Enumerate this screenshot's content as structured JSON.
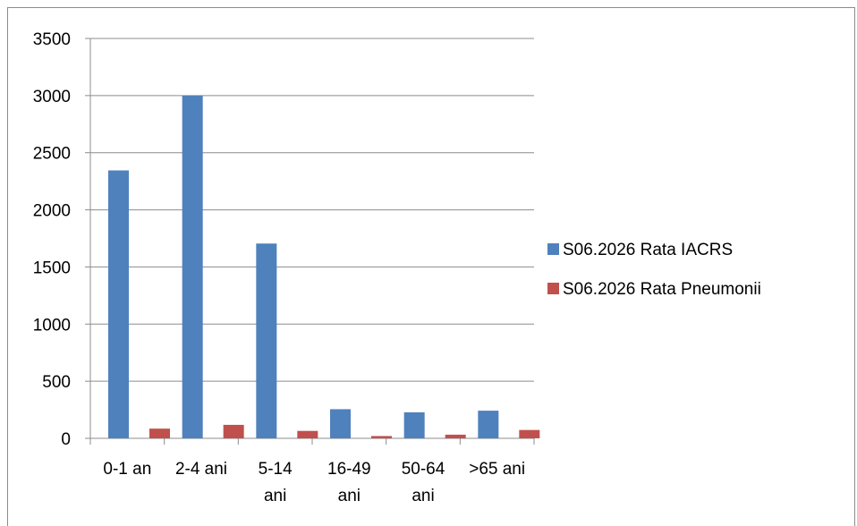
{
  "chart_data": {
    "type": "bar",
    "title": "",
    "xlabel": "",
    "ylabel": "",
    "categories": [
      "0-1 an",
      "2-4 ani",
      "5-14 ani",
      "16-49 ani",
      "50-64 ani",
      ">65 ani"
    ],
    "series": [
      {
        "name": "S06.2026 Rata IACRS",
        "color": "#4f81bd",
        "values": [
          2345,
          3000,
          1705,
          255,
          228,
          242
        ]
      },
      {
        "name": "S06.2026 Rata Pneumonii",
        "color": "#c0504d",
        "values": [
          85,
          118,
          65,
          20,
          32,
          73
        ]
      }
    ],
    "ylim": [
      0,
      3500
    ],
    "yticks": [
      0,
      500,
      1000,
      1500,
      2000,
      2500,
      3000,
      3500
    ],
    "grid": true,
    "legend_position": "right"
  }
}
